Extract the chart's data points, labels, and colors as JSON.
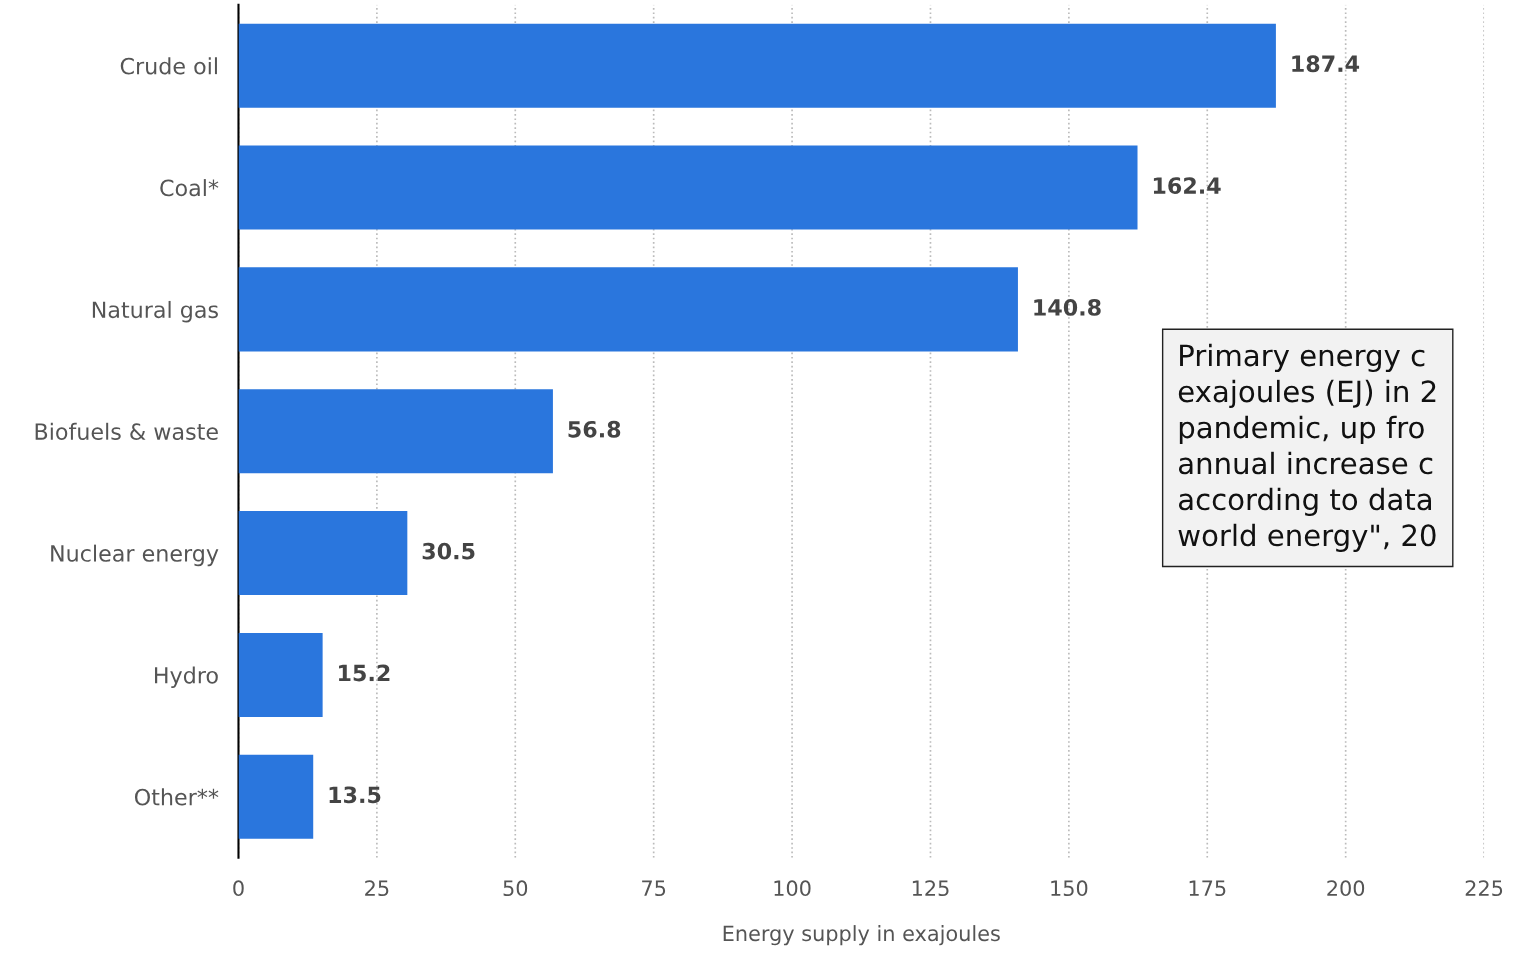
{
  "chart_data": {
    "type": "bar",
    "orientation": "horizontal",
    "xlabel": "Energy supply in exajoules",
    "categories": [
      "Crude oil",
      "Coal*",
      "Natural gas",
      "Biofuels & waste",
      "Nuclear energy",
      "Hydro",
      "Other**"
    ],
    "values": [
      187.4,
      162.4,
      140.8,
      56.8,
      30.5,
      15.2,
      13.5
    ],
    "color": "#2a76dd",
    "data_labels": true,
    "grid": "x",
    "xlim": [
      0,
      225
    ],
    "xticks": [
      0,
      25,
      50,
      75,
      100,
      125,
      150,
      175,
      200,
      225
    ],
    "annotations": [
      "Primary energy c\nexajoules (EJ) in 2\npandemic, up fro\nannual increase c\naccording to data\nworld energy\", 20"
    ]
  }
}
